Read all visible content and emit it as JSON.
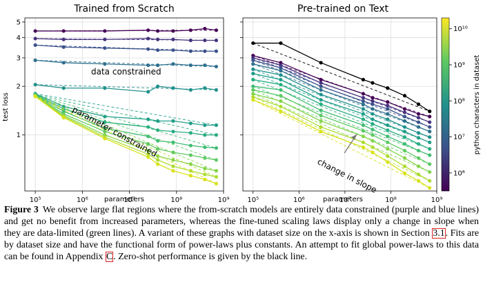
{
  "colors": {
    "purple": "#440154",
    "blue": "#3b528b",
    "teal": "#21918c",
    "green": "#5ec962",
    "yellow": "#fde725",
    "zeroshot": "#000000",
    "ref_box": "#e02020"
  },
  "chart_data": [
    {
      "type": "line",
      "title": "Trained from Scratch",
      "xlabel": "parameters",
      "ylabel": "test loss",
      "x_scale": "log",
      "y_scale": "log",
      "xlim": [
        60000,
        1000000000
      ],
      "ylim": [
        0.45,
        5.3
      ],
      "x_ticks": [
        "10⁵",
        "10⁶",
        "10⁷",
        "10⁸",
        "10⁹"
      ],
      "y_ticks": [
        "1",
        "2",
        "3",
        "4",
        "5"
      ],
      "grid": true,
      "x": [
        100000,
        400000,
        3000000,
        25000000,
        40000000,
        85000000,
        200000000,
        400000000,
        700000000
      ],
      "series": [
        {
          "values": [
            4.4,
            4.4,
            4.4,
            4.45,
            4.4,
            4.4,
            4.45,
            4.55,
            4.45
          ],
          "color_idx": 0
        },
        {
          "values": [
            3.95,
            3.9,
            3.9,
            3.95,
            3.9,
            3.9,
            3.85,
            3.85,
            3.85
          ],
          "color_idx": 1
        },
        {
          "values": [
            3.6,
            3.5,
            3.45,
            3.4,
            3.35,
            3.35,
            3.3,
            3.3,
            3.3
          ],
          "color_idx": 2
        },
        {
          "values": [
            2.9,
            2.8,
            2.75,
            2.7,
            2.7,
            2.75,
            2.7,
            2.7,
            2.65
          ],
          "color_idx": 3
        },
        {
          "values": [
            2.05,
            1.95,
            1.95,
            1.85,
            2.0,
            1.95,
            1.9,
            1.95,
            1.9
          ],
          "color_idx": 4
        },
        {
          "values": [
            1.8,
            1.5,
            1.3,
            1.25,
            1.22,
            1.22,
            1.18,
            1.15,
            1.15
          ],
          "color_idx": 5
        },
        {
          "values": [
            1.78,
            1.45,
            1.2,
            1.12,
            1.07,
            1.05,
            1.03,
            1.0,
            1.0
          ],
          "color_idx": 6
        },
        {
          "values": [
            1.77,
            1.4,
            1.1,
            0.98,
            0.92,
            0.9,
            0.86,
            0.84,
            0.83
          ],
          "color_idx": 7
        },
        {
          "values": [
            1.76,
            1.35,
            1.05,
            0.88,
            0.82,
            0.78,
            0.75,
            0.72,
            0.7
          ],
          "color_idx": 8
        },
        {
          "values": [
            1.75,
            1.32,
            1.0,
            0.8,
            0.74,
            0.7,
            0.66,
            0.62,
            0.6
          ],
          "color_idx": 9
        },
        {
          "values": [
            1.74,
            1.3,
            0.97,
            0.76,
            0.7,
            0.64,
            0.6,
            0.57,
            0.55
          ],
          "color_idx": 10
        },
        {
          "values": [
            1.73,
            1.28,
            0.95,
            0.73,
            0.66,
            0.6,
            0.56,
            0.53,
            0.5
          ],
          "color_idx": 11
        }
      ],
      "annotations": [
        "data constrained",
        "parameter constrained"
      ]
    },
    {
      "type": "line",
      "title": "Pre-trained on Text",
      "xlabel": "parameters",
      "x_scale": "log",
      "y_scale": "log",
      "xlim": [
        60000,
        1000000000
      ],
      "ylim": [
        0.45,
        5.3
      ],
      "x_ticks": [
        "10⁵",
        "10⁶",
        "10⁷",
        "10⁸",
        "10⁹"
      ],
      "grid": true,
      "x": [
        100000,
        400000,
        3000000,
        25000000,
        40000000,
        85000000,
        200000000,
        400000000,
        700000000
      ],
      "zero_shot": {
        "values": [
          3.7,
          3.7,
          2.8,
          2.2,
          2.1,
          1.95,
          1.75,
          1.55,
          1.4
        ],
        "color": "black"
      },
      "series": [
        {
          "values": [
            3.1,
            2.8,
            2.2,
            1.8,
            1.7,
            1.6,
            1.45,
            1.35,
            1.3
          ],
          "color_idx": 0
        },
        {
          "values": [
            3.0,
            2.7,
            2.1,
            1.7,
            1.62,
            1.52,
            1.38,
            1.28,
            1.2
          ],
          "color_idx": 1
        },
        {
          "values": [
            2.9,
            2.6,
            2.0,
            1.62,
            1.55,
            1.45,
            1.3,
            1.2,
            1.12
          ],
          "color_idx": 2
        },
        {
          "values": [
            2.75,
            2.5,
            1.9,
            1.55,
            1.45,
            1.35,
            1.22,
            1.12,
            1.05
          ],
          "color_idx": 3
        },
        {
          "values": [
            2.55,
            2.35,
            1.78,
            1.45,
            1.35,
            1.25,
            1.12,
            1.03,
            0.97
          ],
          "color_idx": 4
        },
        {
          "values": [
            2.4,
            2.2,
            1.65,
            1.35,
            1.25,
            1.15,
            1.05,
            0.96,
            0.9
          ],
          "color_idx": 5
        },
        {
          "values": [
            2.2,
            2.05,
            1.55,
            1.25,
            1.17,
            1.07,
            0.97,
            0.88,
            0.82
          ],
          "color_idx": 6
        },
        {
          "values": [
            2.0,
            1.9,
            1.42,
            1.15,
            1.08,
            0.98,
            0.88,
            0.8,
            0.75
          ],
          "color_idx": 7
        },
        {
          "values": [
            1.9,
            1.75,
            1.32,
            1.06,
            1.0,
            0.9,
            0.8,
            0.72,
            0.66
          ],
          "color_idx": 8
        },
        {
          "values": [
            1.8,
            1.62,
            1.22,
            0.98,
            0.92,
            0.82,
            0.72,
            0.64,
            0.59
          ],
          "color_idx": 9
        },
        {
          "values": [
            1.72,
            1.5,
            1.12,
            0.9,
            0.84,
            0.74,
            0.64,
            0.57,
            0.52
          ],
          "color_idx": 10
        },
        {
          "values": [
            1.65,
            1.4,
            1.05,
            0.84,
            0.78,
            0.68,
            0.58,
            0.52,
            0.47
          ],
          "color_idx": 11
        }
      ],
      "annotations": [
        "change in slope"
      ]
    }
  ],
  "colorbar": {
    "label": "python characters in dataset",
    "tick_labels": [
      "10¹⁰",
      "10⁹",
      "10⁸",
      "10⁷",
      "10⁶"
    ],
    "log_range": [
      5.5,
      10.3
    ],
    "ticks_log": [
      10,
      9,
      8,
      7,
      6
    ]
  },
  "caption": {
    "label": "Figure 3",
    "part1": "We observe large flat regions where the from-scratch models are entirely data constrained (purple and blue lines) and get no benefit from increased parameters, whereas the fine-tuned scaling laws display only a change in slope when they are data-limited (green lines). A variant of these graphs with dataset size on the x-axis is shown in Section ",
    "ref1": "3.1",
    "part2": ". Fits are by dataset size and have the functional form of power-laws plus constants. An attempt to fit global power-laws to this data can be found in Appendix ",
    "ref2": "C",
    "part3": ". Zero-shot performance is given by the black line."
  }
}
